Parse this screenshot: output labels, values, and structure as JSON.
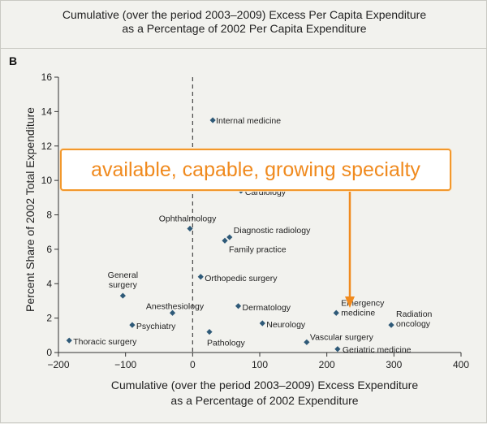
{
  "header": {
    "title_line1": "Cumulative (over the period 2003–2009) Excess Per Capita Expenditure",
    "title_line2": "as a Percentage of 2002 Per Capita Expenditure",
    "panel_label": "B"
  },
  "callout": {
    "text": "available, capable, growing specialty",
    "color": "#f08a1e",
    "border_color": "#f2982c"
  },
  "chart_data": {
    "type": "scatter",
    "title": "Cumulative (over the period 2003–2009) Excess Per Capita Expenditure as a Percentage of 2002 Per Capita Expenditure",
    "xlabel_line1": "Cumulative (over the period 2003–2009) Excess Expenditure",
    "xlabel_line2": "as a Percentage of 2002 Expenditure",
    "ylabel": "Percent Share of 2002 Total Expenditure",
    "xlim": [
      -200,
      400
    ],
    "ylim": [
      0,
      16
    ],
    "xticks": [
      -200,
      -100,
      0,
      100,
      200,
      300,
      400
    ],
    "yticks": [
      0,
      2,
      4,
      6,
      8,
      10,
      12,
      14,
      16
    ],
    "xtick_labels": [
      "−200",
      "−100",
      "0",
      "100",
      "200",
      "300",
      "400"
    ],
    "ytick_labels": [
      "0",
      "2",
      "4",
      "6",
      "8",
      "10",
      "12",
      "14",
      "16"
    ],
    "reference_line_x": 0,
    "grid": false,
    "marker_color": "#2f5a78",
    "points": [
      {
        "label": "Internal medicine",
        "x": 30,
        "y": 13.5
      },
      {
        "label": "Cardiology",
        "x": 72,
        "y": 9.4
      },
      {
        "label": "Ophthalmology",
        "x": -4,
        "y": 7.2
      },
      {
        "label": "Diagnostic radiology",
        "x": 55,
        "y": 6.7
      },
      {
        "label": "Family practice",
        "x": 48,
        "y": 6.5
      },
      {
        "label": "Orthopedic surgery",
        "x": 12,
        "y": 4.4
      },
      {
        "label": "General surgery",
        "x": -104,
        "y": 3.3
      },
      {
        "label": "Anesthesiology",
        "x": -30,
        "y": 2.3
      },
      {
        "label": "Dermatology",
        "x": 68,
        "y": 2.7
      },
      {
        "label": "Emergency medicine",
        "x": 214,
        "y": 2.3
      },
      {
        "label": "Radiation oncology",
        "x": 296,
        "y": 1.6
      },
      {
        "label": "Psychiatry",
        "x": -90,
        "y": 1.6
      },
      {
        "label": "Neurology",
        "x": 104,
        "y": 1.7
      },
      {
        "label": "Thoracic surgery",
        "x": -184,
        "y": 0.7
      },
      {
        "label": "Pathology",
        "x": 25,
        "y": 1.2
      },
      {
        "label": "Vascular surgery",
        "x": 170,
        "y": 0.6
      },
      {
        "label": "Geriatric medicine",
        "x": 216,
        "y": 0.2
      }
    ]
  }
}
